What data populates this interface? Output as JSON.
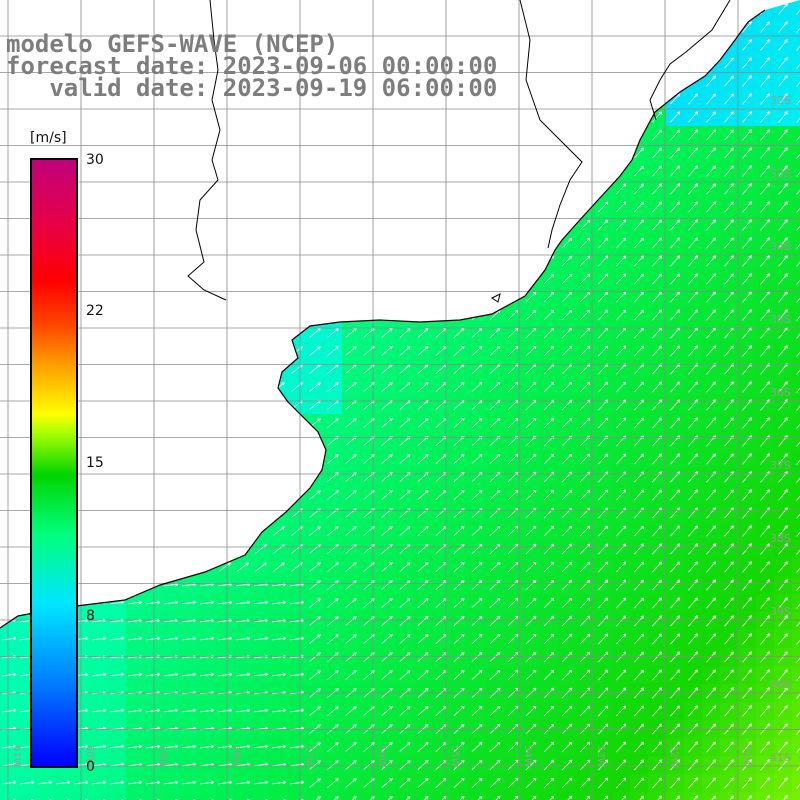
{
  "title": {
    "line1": "modelo GEFS-WAVE (NCEP)",
    "line2": "forecast date: 2023-09-06 00:00:00",
    "line3": "   valid date: 2023-09-19 06:00:00"
  },
  "colorbar": {
    "unit": "[m/s]",
    "ticks": [
      "30",
      "22",
      "15",
      "8",
      "0"
    ]
  },
  "lat_labels": [
    "32S",
    "33S",
    "34S",
    "35S",
    "36S",
    "37S",
    "38S",
    "39S",
    "40S",
    "41S"
  ],
  "lon_labels": [
    "61W",
    "60W",
    "59W",
    "58W",
    "57W",
    "56W",
    "55W",
    "54W",
    "53W",
    "52W",
    "51W"
  ],
  "colors": {
    "land": "#ffffff",
    "grid": "#8a8a8a",
    "coast": "#000000",
    "arrow": "#ffffff",
    "title": "#7d7d7d"
  },
  "variable": "wind speed with direction arrows"
}
